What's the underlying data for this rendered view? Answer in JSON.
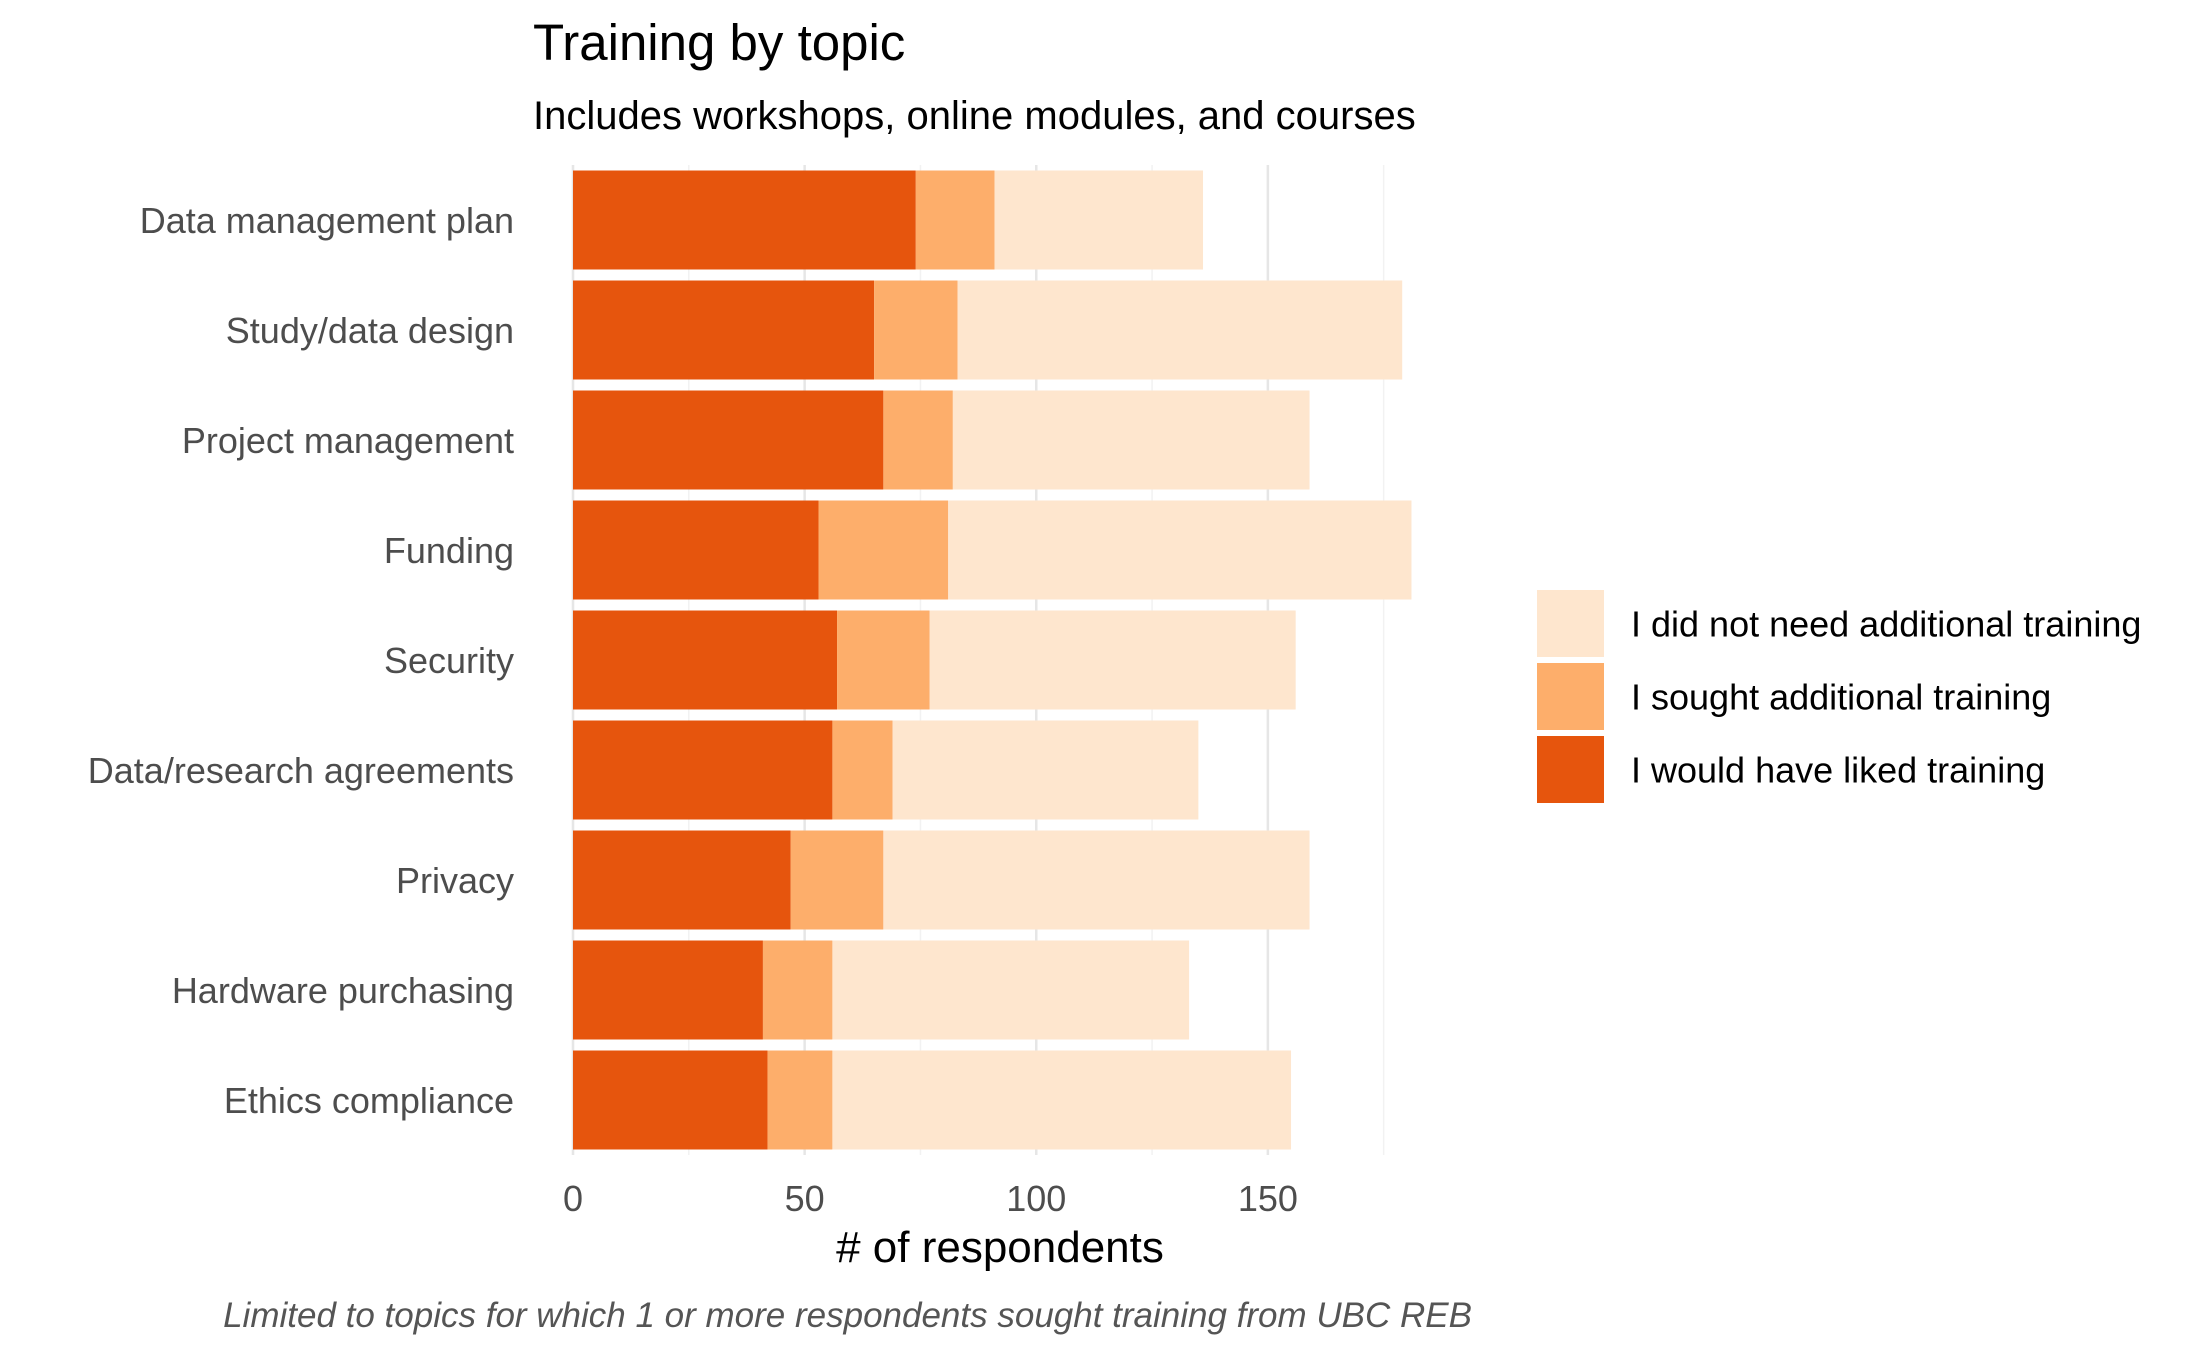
{
  "chart_data": {
    "type": "bar",
    "orientation": "horizontal",
    "stacked": true,
    "title": "Training by topic",
    "subtitle": "Includes workshops, online modules, and courses",
    "xlabel": "# of respondents",
    "ylabel": "",
    "caption": "Limited to topics for which 1 or more respondents sought training from UBC REB",
    "xlim": [
      0,
      185
    ],
    "xticks": [
      0,
      50,
      100,
      150
    ],
    "grid": true,
    "legend_position": "right",
    "categories": [
      "Data management plan",
      "Study/data design",
      "Project management",
      "Funding",
      "Security",
      "Data/research agreements",
      "Privacy",
      "Hardware purchasing",
      "Ethics compliance"
    ],
    "series": [
      {
        "name": "I would have liked training",
        "color": "#E6550D",
        "values": [
          74,
          65,
          67,
          53,
          57,
          56,
          47,
          41,
          42
        ]
      },
      {
        "name": "I sought additional training",
        "color": "#FDAE6B",
        "values": [
          17,
          18,
          15,
          28,
          20,
          13,
          20,
          15,
          14
        ]
      },
      {
        "name": "I did not need additional training",
        "color": "#FEE6CE",
        "values": [
          45,
          96,
          77,
          100,
          79,
          66,
          92,
          77,
          99
        ]
      }
    ],
    "legend_order": [
      "I did not need additional training",
      "I sought additional training",
      "I would have liked training"
    ],
    "colors": {
      "text": "#000000",
      "axis_text": "#4d4d4d",
      "caption": "#555555",
      "grid_major": "#e6e6e6",
      "grid_minor": "#f2f2f2"
    }
  }
}
